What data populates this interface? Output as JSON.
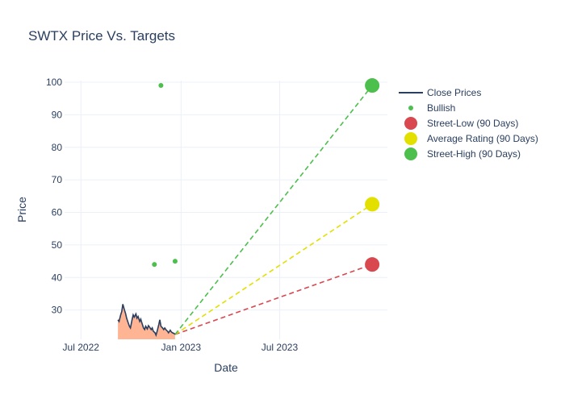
{
  "chart_data": {
    "type": "line",
    "title": "SWTX Price Vs. Targets",
    "xlabel": "Date",
    "ylabel": "Price",
    "xlim": [
      "2022-06-01",
      "2024-01-15"
    ],
    "ylim": [
      21,
      100.5
    ],
    "x_ticks": [
      {
        "date": "2022-07-01",
        "label": "Jul 2022"
      },
      {
        "date": "2023-01-01",
        "label": "Jan 2023"
      },
      {
        "date": "2023-07-01",
        "label": "Jul 2023"
      }
    ],
    "y_ticks": [
      30,
      40,
      50,
      60,
      70,
      80,
      90,
      100
    ],
    "grid": true,
    "legend_position": "right",
    "series": [
      {
        "name": "Close Prices",
        "kind": "line",
        "color": "#2a3f5f",
        "fill_color": "#ffb494",
        "x": [
          "2022-09-07",
          "2022-09-09",
          "2022-09-12",
          "2022-09-14",
          "2022-09-16",
          "2022-09-19",
          "2022-09-21",
          "2022-09-23",
          "2022-09-26",
          "2022-09-28",
          "2022-09-30",
          "2022-10-03",
          "2022-10-05",
          "2022-10-07",
          "2022-10-10",
          "2022-10-12",
          "2022-10-14",
          "2022-10-17",
          "2022-10-19",
          "2022-10-21",
          "2022-10-24",
          "2022-10-26",
          "2022-10-28",
          "2022-10-31",
          "2022-11-02",
          "2022-11-04",
          "2022-11-07",
          "2022-11-09",
          "2022-11-11",
          "2022-11-14",
          "2022-11-16",
          "2022-11-18",
          "2022-11-21",
          "2022-11-23",
          "2022-11-25",
          "2022-11-28",
          "2022-11-30",
          "2022-12-02",
          "2022-12-05",
          "2022-12-07",
          "2022-12-09",
          "2022-12-12",
          "2022-12-14",
          "2022-12-16",
          "2022-12-19",
          "2022-12-21"
        ],
        "values": [
          27.0,
          26.5,
          28.5,
          29.5,
          31.8,
          30.0,
          29.0,
          27.5,
          26.0,
          25.0,
          24.5,
          27.0,
          28.5,
          27.8,
          28.8,
          27.5,
          28.0,
          26.5,
          27.2,
          26.0,
          24.5,
          24.0,
          25.0,
          24.2,
          25.2,
          24.8,
          24.0,
          24.5,
          23.5,
          23.0,
          22.3,
          23.5,
          25.5,
          27.0,
          25.0,
          24.5,
          24.0,
          24.5,
          23.8,
          23.5,
          23.0,
          23.8,
          23.3,
          23.0,
          22.8,
          22.5
        ]
      },
      {
        "name": "Bullish",
        "kind": "scatter",
        "color": "#4cbf4c",
        "points": [
          {
            "x": "2022-11-13",
            "y": 44
          },
          {
            "x": "2022-11-25",
            "y": 99
          },
          {
            "x": "2022-12-21",
            "y": 45
          }
        ]
      },
      {
        "name": "Street-Low (90 Days)",
        "kind": "target",
        "color": "#d9474f",
        "from": {
          "x": "2022-12-21",
          "y": 22.5
        },
        "to": {
          "x": "2023-12-18",
          "y": 44
        }
      },
      {
        "name": "Average Rating (90 Days)",
        "kind": "target",
        "color": "#e3e000",
        "from": {
          "x": "2022-12-21",
          "y": 22.5
        },
        "to": {
          "x": "2023-12-18",
          "y": 62.5
        }
      },
      {
        "name": "Street-High (90 Days)",
        "kind": "target",
        "color": "#4cbf4c",
        "from": {
          "x": "2022-12-21",
          "y": 22.5
        },
        "to": {
          "x": "2023-12-18",
          "y": 99
        }
      }
    ]
  }
}
